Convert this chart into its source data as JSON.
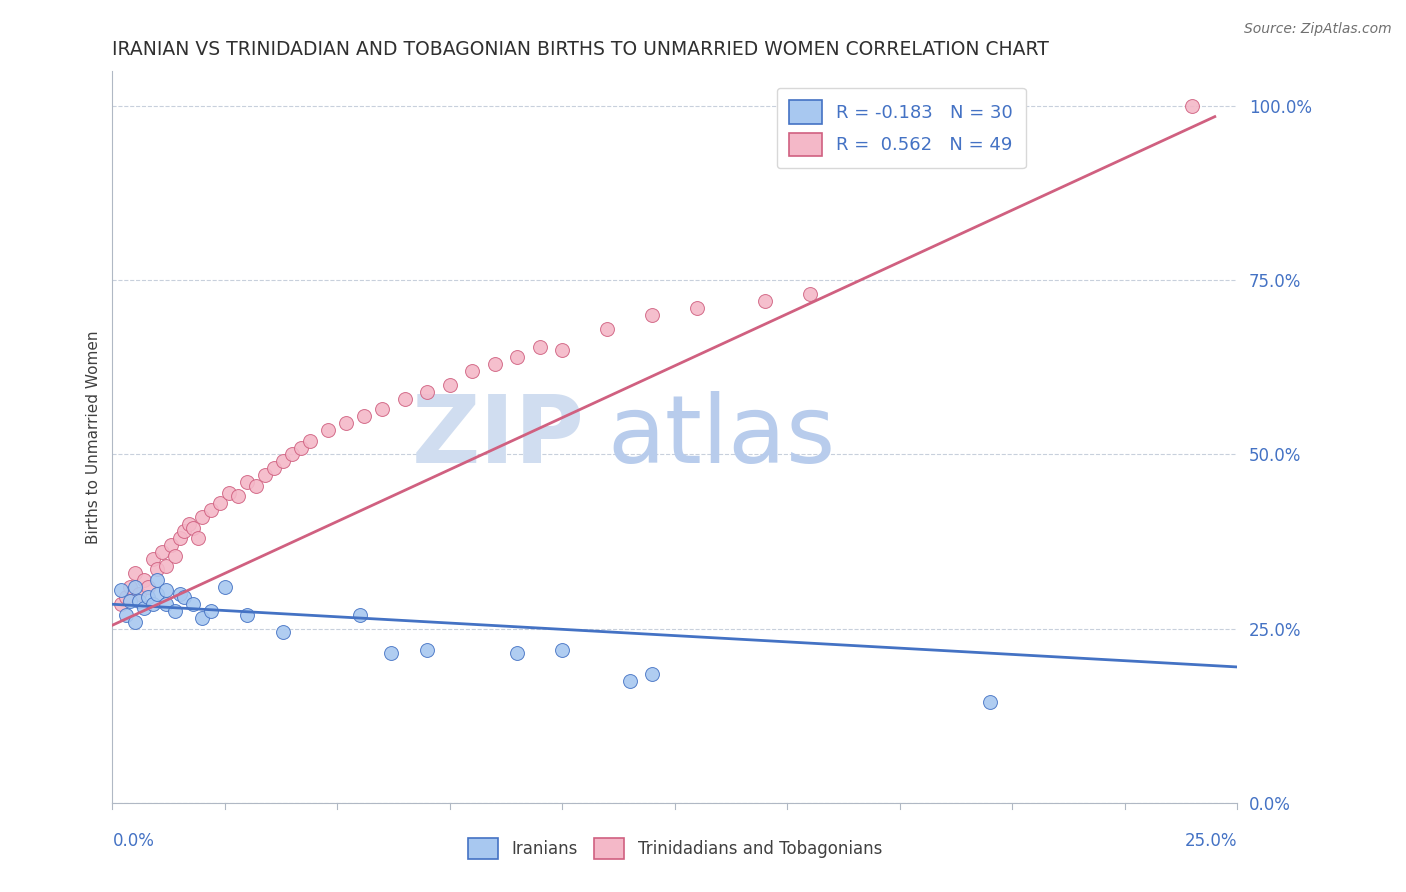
{
  "title": "IRANIAN VS TRINIDADIAN AND TOBAGONIAN BIRTHS TO UNMARRIED WOMEN CORRELATION CHART",
  "source_text": "Source: ZipAtlas.com",
  "ylabel": "Births to Unmarried Women",
  "x_min": 0.0,
  "x_max": 0.25,
  "y_min": 0.0,
  "y_max": 1.05,
  "right_yticks": [
    0.0,
    0.25,
    0.5,
    0.75,
    1.0
  ],
  "right_yticklabels": [
    "0.0%",
    "25.0%",
    "50.0%",
    "75.0%",
    "100.0%"
  ],
  "legend_blue_label": "R = -0.183   N = 30",
  "legend_pink_label": "R =  0.562   N = 49",
  "blue_color": "#a8c8f0",
  "pink_color": "#f4b8c8",
  "blue_line_color": "#4472c4",
  "pink_line_color": "#d06080",
  "watermark_zip_color": "#d0ddf0",
  "watermark_atlas_color": "#b8ccec",
  "title_color": "#303030",
  "axis_color": "#4472c4",
  "grid_color": "#c8d0dc",
  "blue_scatter_x": [
    0.002,
    0.003,
    0.004,
    0.005,
    0.005,
    0.006,
    0.007,
    0.008,
    0.009,
    0.01,
    0.01,
    0.012,
    0.012,
    0.014,
    0.015,
    0.016,
    0.018,
    0.02,
    0.022,
    0.025,
    0.03,
    0.038,
    0.055,
    0.062,
    0.07,
    0.09,
    0.1,
    0.115,
    0.12,
    0.195
  ],
  "blue_scatter_y": [
    0.305,
    0.27,
    0.29,
    0.26,
    0.31,
    0.29,
    0.28,
    0.295,
    0.285,
    0.3,
    0.32,
    0.305,
    0.285,
    0.275,
    0.3,
    0.295,
    0.285,
    0.265,
    0.275,
    0.31,
    0.27,
    0.245,
    0.27,
    0.215,
    0.22,
    0.215,
    0.22,
    0.175,
    0.185,
    0.145
  ],
  "pink_scatter_x": [
    0.002,
    0.003,
    0.004,
    0.005,
    0.006,
    0.007,
    0.008,
    0.009,
    0.01,
    0.011,
    0.012,
    0.013,
    0.014,
    0.015,
    0.016,
    0.017,
    0.018,
    0.019,
    0.02,
    0.022,
    0.024,
    0.026,
    0.028,
    0.03,
    0.032,
    0.034,
    0.036,
    0.038,
    0.04,
    0.042,
    0.044,
    0.048,
    0.052,
    0.056,
    0.06,
    0.065,
    0.07,
    0.075,
    0.08,
    0.085,
    0.09,
    0.095,
    0.1,
    0.11,
    0.12,
    0.13,
    0.145,
    0.155,
    0.24
  ],
  "pink_scatter_y": [
    0.285,
    0.295,
    0.31,
    0.33,
    0.3,
    0.32,
    0.31,
    0.35,
    0.335,
    0.36,
    0.34,
    0.37,
    0.355,
    0.38,
    0.39,
    0.4,
    0.395,
    0.38,
    0.41,
    0.42,
    0.43,
    0.445,
    0.44,
    0.46,
    0.455,
    0.47,
    0.48,
    0.49,
    0.5,
    0.51,
    0.52,
    0.535,
    0.545,
    0.555,
    0.565,
    0.58,
    0.59,
    0.6,
    0.62,
    0.63,
    0.64,
    0.655,
    0.65,
    0.68,
    0.7,
    0.71,
    0.72,
    0.73,
    1.0
  ],
  "blue_line_x": [
    0.0,
    0.25
  ],
  "blue_line_y": [
    0.285,
    0.195
  ],
  "pink_line_x": [
    0.0,
    0.245
  ],
  "pink_line_y": [
    0.255,
    0.985
  ],
  "figsize": [
    14.06,
    8.92
  ],
  "dpi": 100
}
